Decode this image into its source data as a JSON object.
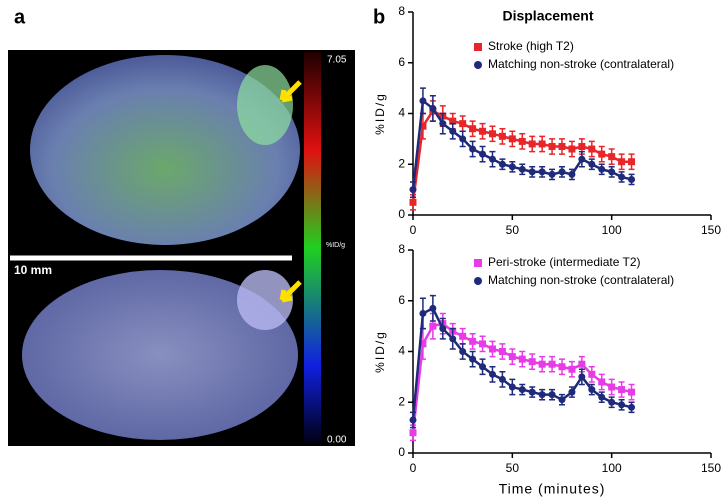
{
  "panel_a": {
    "label": "a",
    "scale_bar": "10 mm",
    "colorbar_title": "%ID/g",
    "colorbar_ticks": [
      7.05,
      {
        "value": 0,
        "label": "0.00"
      }
    ]
  },
  "panel_b_label": "b",
  "chart_data": [
    {
      "type": "line",
      "title": "Displacement",
      "y_label": "%ID/g",
      "x": [
        0,
        5,
        10,
        15,
        20,
        25,
        30,
        35,
        40,
        45,
        50,
        55,
        60,
        65,
        70,
        75,
        80,
        85,
        90,
        95,
        100,
        105,
        110
      ],
      "series": [
        {
          "name": "Stroke (high T2)",
          "color": "#e8262a",
          "marker": "square",
          "values": [
            0.5,
            3.5,
            4.1,
            3.9,
            3.7,
            3.6,
            3.4,
            3.3,
            3.2,
            3.1,
            3.0,
            2.9,
            2.8,
            2.8,
            2.7,
            2.7,
            2.6,
            2.7,
            2.6,
            2.4,
            2.3,
            2.1,
            2.1
          ],
          "errors": [
            0.3,
            0.5,
            0.4,
            0.4,
            0.3,
            0.3,
            0.3,
            0.3,
            0.3,
            0.3,
            0.3,
            0.3,
            0.3,
            0.3,
            0.3,
            0.3,
            0.3,
            0.3,
            0.3,
            0.3,
            0.3,
            0.3,
            0.3
          ]
        },
        {
          "name": "Matching non-stroke (contralateral)",
          "color": "#1f2a7a",
          "marker": "circle",
          "values": [
            1.0,
            4.5,
            4.2,
            3.6,
            3.3,
            3.0,
            2.6,
            2.4,
            2.2,
            2.0,
            1.9,
            1.8,
            1.7,
            1.7,
            1.6,
            1.7,
            1.6,
            2.2,
            2.0,
            1.8,
            1.7,
            1.5,
            1.4
          ],
          "errors": [
            0.3,
            0.5,
            0.5,
            0.4,
            0.3,
            0.3,
            0.3,
            0.3,
            0.3,
            0.2,
            0.2,
            0.2,
            0.2,
            0.2,
            0.2,
            0.2,
            0.2,
            0.3,
            0.2,
            0.2,
            0.2,
            0.2,
            0.2
          ]
        }
      ],
      "xlim": [
        0,
        150
      ],
      "xticks": [
        0,
        50,
        100,
        150
      ],
      "ylim": [
        0,
        8
      ],
      "yticks": [
        0,
        2,
        4,
        6,
        8
      ]
    },
    {
      "type": "line",
      "x_label": "Time (minutes)",
      "y_label": "%ID/g",
      "x": [
        0,
        5,
        10,
        15,
        20,
        25,
        30,
        35,
        40,
        45,
        50,
        55,
        60,
        65,
        70,
        75,
        80,
        85,
        90,
        95,
        100,
        105,
        110
      ],
      "series": [
        {
          "name": "Peri-stroke (intermediate T2)",
          "color": "#e83be8",
          "marker": "square",
          "values": [
            0.8,
            4.3,
            5.0,
            5.1,
            4.8,
            4.6,
            4.4,
            4.3,
            4.1,
            4.0,
            3.8,
            3.7,
            3.6,
            3.5,
            3.5,
            3.4,
            3.3,
            3.5,
            3.1,
            2.8,
            2.6,
            2.5,
            2.4
          ],
          "errors": [
            0.3,
            0.6,
            0.5,
            0.4,
            0.3,
            0.3,
            0.3,
            0.3,
            0.3,
            0.3,
            0.3,
            0.3,
            0.3,
            0.3,
            0.3,
            0.3,
            0.3,
            0.3,
            0.3,
            0.3,
            0.3,
            0.3,
            0.3
          ]
        },
        {
          "name": "Matching non-stroke (contralateral)",
          "color": "#1f2a7a",
          "marker": "circle",
          "values": [
            1.3,
            5.5,
            5.7,
            4.9,
            4.5,
            4.0,
            3.7,
            3.4,
            3.1,
            2.9,
            2.6,
            2.5,
            2.4,
            2.3,
            2.3,
            2.1,
            2.4,
            3.0,
            2.5,
            2.2,
            2.0,
            1.9,
            1.8
          ],
          "errors": [
            0.3,
            0.6,
            0.5,
            0.4,
            0.4,
            0.3,
            0.3,
            0.3,
            0.3,
            0.3,
            0.3,
            0.2,
            0.2,
            0.2,
            0.2,
            0.2,
            0.2,
            0.3,
            0.2,
            0.2,
            0.2,
            0.2,
            0.2
          ]
        }
      ],
      "xlim": [
        0,
        150
      ],
      "xticks": [
        0,
        50,
        100,
        150
      ],
      "ylim": [
        0,
        8
      ],
      "yticks": [
        0,
        2,
        4,
        6,
        8
      ]
    }
  ]
}
